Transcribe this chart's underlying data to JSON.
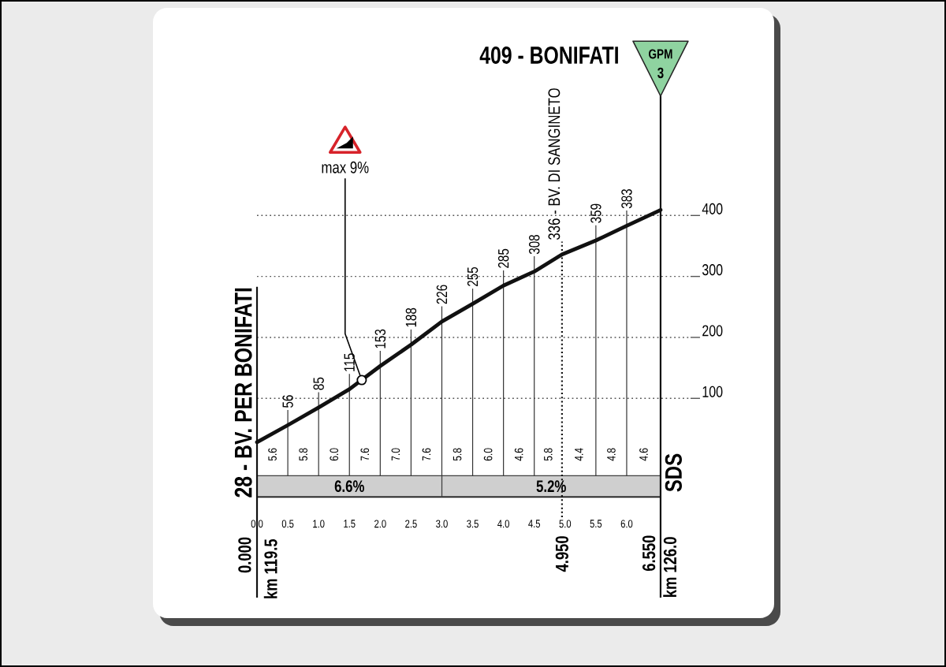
{
  "chart_data": [
    {
      "type": "line",
      "x": [
        0,
        0.5,
        1.0,
        1.5,
        2.0,
        2.5,
        3.0,
        3.5,
        4.0,
        4.5,
        4.95,
        5.5,
        6.0,
        6.55
      ],
      "values": [
        28,
        56,
        85,
        115,
        153,
        188,
        226,
        255,
        285,
        308,
        336,
        359,
        383,
        409
      ],
      "color": "#111111",
      "line_style": "solid",
      "value_labels": [
        null,
        "56",
        "85",
        "115",
        "153",
        "188",
        "226",
        "255",
        "285",
        "308",
        null,
        "359",
        "383",
        null
      ],
      "xlim": [
        0,
        6.55
      ],
      "ylim": [
        -27,
        686
      ],
      "yticks": [
        100,
        200,
        300,
        400
      ],
      "tick_labels": "y",
      "grid": "y",
      "ref_lines": [
        {
          "axis": "x",
          "value": 0,
          "label": "28 - BV. PER BONIFATI",
          "line_style": "solid",
          "color": "#111111"
        },
        {
          "axis": "x",
          "value": 4.95,
          "label": "336 - BV. DI SANGINETO",
          "line_style": "dotted",
          "color": "#111111"
        },
        {
          "axis": "x",
          "value": 6.55,
          "label": "409 - BONIFATI",
          "line_style": "solid",
          "color": "#111111"
        }
      ],
      "annotations": [
        {
          "text": "max 9%",
          "x": 1.7,
          "y": 130
        },
        "5.6",
        "5.8",
        "6.0",
        "7.6",
        "7.0",
        "7.6",
        "5.8",
        "6.0",
        "4.6",
        "5.8",
        "4.4",
        "4.8",
        "4.6",
        "SDS",
        "0.000",
        "km 119.5",
        "4.950",
        "6.550",
        "km 126.0",
        "GPM",
        "3"
      ]
    },
    {
      "type": "bar",
      "orientation": "horizontal",
      "stacked": true,
      "categories": [
        null
      ],
      "series": [
        {
          "color": "#cfcfcf",
          "values": [
            3.0
          ]
        },
        {
          "color": "#cfcfcf",
          "values": [
            3.55
          ]
        }
      ],
      "annotations": [
        "6.6%",
        "5.2%"
      ],
      "xlim": [
        0,
        6.55
      ],
      "xticks": [
        {
          "value": 0,
          "label": "0.0"
        },
        0.5,
        {
          "value": 1,
          "label": "1.0"
        },
        1.5,
        {
          "value": 2,
          "label": "2.0"
        },
        2.5,
        {
          "value": 3,
          "label": "3.0"
        },
        3.5,
        {
          "value": 4,
          "label": "4.0"
        },
        4.5,
        {
          "value": 5,
          "label": "5.0"
        },
        5.5,
        {
          "value": 6,
          "label": "6.0"
        }
      ],
      "tick_labels": "x"
    }
  ]
}
